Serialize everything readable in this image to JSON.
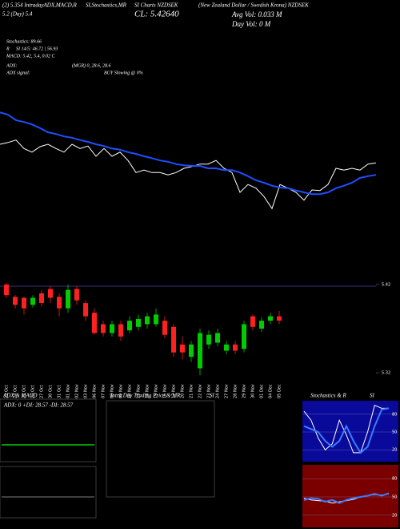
{
  "header": {
    "title_left": "(2) 5.354 IntradayADX,MACD,R",
    "title_mid": "SI,Stochastics,MR",
    "title_mid2": "SI Charts NZDSEK",
    "title_right": "(New Zealand Dollar / Swedish Krona) NZDSEK",
    "range": "5.2 (Day) 5.4",
    "close": "CL: 5.42640",
    "avg_vol": "Avg Vol: 0.033 M",
    "day_vol": "Day Vol: 0 M"
  },
  "indicators": [
    {
      "label": "Stochastics: 89.66",
      "value": ""
    },
    {
      "label": "R",
      "value": "SI 14/5: 46.72 | 56.93"
    },
    {
      "label": "MACD: 5.42, 5.4, 0.02 C",
      "value": ""
    },
    {
      "label": "ADX:",
      "value": "(MGR) 0, 28.6, 28.6"
    },
    {
      "label": "ADX  signal:",
      "value": "BUY Slowing @ 0%"
    }
  ],
  "panels": {
    "adx_title": "ADX  & MACD",
    "adx_text": "ADX: 0  +DI: 28.57  -DI: 28.57",
    "intraday_title": "Intra  Day Trading Price  & MR",
    "intraday_title2": "SI"
  },
  "chart_data": [
    {
      "type": "line",
      "ylim": [
        5.28,
        5.52
      ],
      "series": [
        {
          "color": "#ffffff",
          "values": [
            5.44,
            5.443,
            5.447,
            5.433,
            5.427,
            5.436,
            5.44,
            5.433,
            5.427,
            5.44,
            5.433,
            5.437,
            5.42,
            5.433,
            5.42,
            5.427,
            5.413,
            5.393,
            5.397,
            5.393,
            5.393,
            5.389,
            5.393,
            5.4,
            5.403,
            5.407,
            5.407,
            5.413,
            5.4,
            5.393,
            5.36,
            5.373,
            5.367,
            5.353,
            5.333,
            5.373,
            5.367,
            5.36,
            5.347,
            5.364,
            5.363,
            5.373,
            5.4,
            5.397,
            5.4,
            5.397,
            5.407,
            5.409
          ]
        },
        {
          "color": "#1f4fff",
          "values": [
            5.493,
            5.489,
            5.48,
            5.477,
            5.473,
            5.467,
            5.46,
            5.457,
            5.453,
            5.451,
            5.447,
            5.444,
            5.44,
            5.437,
            5.433,
            5.431,
            5.427,
            5.424,
            5.42,
            5.417,
            5.413,
            5.411,
            5.407,
            5.405,
            5.404,
            5.404,
            5.4,
            5.4,
            5.397,
            5.397,
            5.393,
            5.387,
            5.38,
            5.376,
            5.371,
            5.368,
            5.367,
            5.363,
            5.36,
            5.357,
            5.357,
            5.36,
            5.367,
            5.371,
            5.376,
            5.384,
            5.387,
            5.389
          ]
        }
      ]
    },
    {
      "type": "candlestick",
      "ylim": [
        5.31,
        5.43
      ],
      "yticks": [
        5.42,
        5.32
      ],
      "up_color": "#00cc00",
      "down_color": "#ff2020",
      "categories": [
        "23 Oct",
        "24 Oct",
        "25 Oct",
        "26 Oct",
        "27 Oct",
        "30 Oct",
        "31 Oct",
        "01 Nov",
        "02 Nov",
        "03 Nov",
        "06 Nov",
        "07 Nov",
        "08 Nov",
        "09 Nov",
        "10 Nov",
        "13 Nov",
        "14 Nov",
        "15 Nov",
        "16 Nov",
        "17 Nov",
        "20 Nov",
        "21 Nov",
        "22 Nov",
        "23 Nov",
        "24 Nov",
        "27 Nov",
        "28 Nov",
        "29 Nov",
        "30 Nov",
        "01 Dec",
        "04 Dec",
        "05 Dec"
      ],
      "open": [
        5.42,
        5.406,
        5.405,
        5.397,
        5.41,
        5.415,
        5.406,
        5.393,
        5.415,
        5.399,
        5.388,
        5.375,
        5.365,
        5.375,
        5.368,
        5.372,
        5.375,
        5.375,
        5.379,
        5.372,
        5.352,
        5.338,
        5.325,
        5.352,
        5.354,
        5.345,
        5.352,
        5.347,
        5.384,
        5.37,
        5.379,
        5.384
      ],
      "high": [
        5.422,
        5.408,
        5.406,
        5.408,
        5.414,
        5.418,
        5.41,
        5.42,
        5.418,
        5.402,
        5.393,
        5.379,
        5.379,
        5.379,
        5.384,
        5.386,
        5.388,
        5.393,
        5.384,
        5.375,
        5.361,
        5.356,
        5.37,
        5.368,
        5.37,
        5.356,
        5.356,
        5.379,
        5.386,
        5.383,
        5.388,
        5.39
      ],
      "low": [
        5.405,
        5.393,
        5.386,
        5.394,
        5.395,
        5.399,
        5.384,
        5.388,
        5.397,
        5.379,
        5.363,
        5.361,
        5.361,
        5.356,
        5.365,
        5.368,
        5.37,
        5.372,
        5.359,
        5.338,
        5.335,
        5.332,
        5.317,
        5.347,
        5.35,
        5.341,
        5.341,
        5.343,
        5.368,
        5.366,
        5.375,
        5.375
      ],
      "close": [
        5.408,
        5.397,
        5.393,
        5.405,
        5.399,
        5.405,
        5.393,
        5.414,
        5.402,
        5.384,
        5.365,
        5.365,
        5.375,
        5.361,
        5.379,
        5.381,
        5.384,
        5.386,
        5.363,
        5.343,
        5.343,
        5.352,
        5.365,
        5.363,
        5.365,
        5.352,
        5.345,
        5.375,
        5.372,
        5.379,
        5.384,
        5.379
      ]
    },
    {
      "type": "line",
      "title": "Stochastics  & R",
      "title2": "SI",
      "ylim": [
        0,
        100
      ],
      "yticks": [
        80,
        50,
        20
      ],
      "background": "#0a0a9a",
      "series": [
        {
          "color": "#ffffff",
          "values": [
            85,
            70,
            40,
            20,
            30,
            70,
            45,
            15,
            15,
            50,
            95,
            90,
            90
          ]
        },
        {
          "color": "#3a7bff",
          "values": [
            60,
            55,
            50,
            35,
            25,
            35,
            60,
            35,
            15,
            25,
            60,
            88,
            90
          ]
        }
      ]
    },
    {
      "type": "line",
      "ylim": [
        0,
        100
      ],
      "yticks": [
        80,
        50,
        20
      ],
      "background": "#7a0000",
      "series": [
        {
          "color": "#ffffff",
          "values": [
            48,
            45,
            44,
            43,
            40,
            42,
            44,
            46,
            50,
            52,
            54,
            53,
            55
          ]
        },
        {
          "color": "#3a7bff",
          "values": [
            45,
            48,
            47,
            42,
            45,
            40,
            45,
            48,
            50,
            52,
            55,
            52,
            56
          ]
        }
      ]
    }
  ]
}
